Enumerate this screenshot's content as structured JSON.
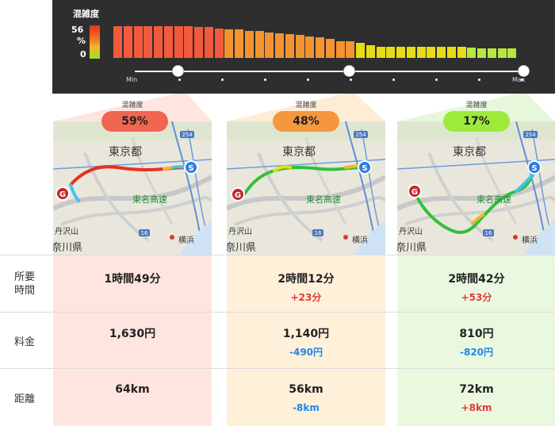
{
  "congestion_header": {
    "title": "混雑度",
    "max_label": "56",
    "unit_label": "%",
    "min_label": "0",
    "slider_min": "Min",
    "slider_max": "Max",
    "bar_levels": [
      56,
      56,
      56,
      56,
      56,
      56,
      56,
      56,
      54,
      54,
      52,
      50,
      50,
      48,
      47,
      45,
      44,
      42,
      40,
      38,
      36,
      34,
      30,
      29,
      26,
      22,
      20,
      20,
      20,
      20,
      20,
      20,
      20,
      20,
      20,
      18,
      17,
      17,
      17,
      17
    ],
    "slider_positions": [
      0.11,
      0.55,
      1.0
    ],
    "colors": {
      "red": "#f25a3e",
      "orange": "#f39431",
      "yellow": "#e8dc19",
      "green": "#b5e840"
    }
  },
  "routes": [
    {
      "label": "混雑度",
      "congestion": "59%",
      "pill_color": "#f06650",
      "time": "1時間49分",
      "time_diff": "",
      "fee": "1,630円",
      "fee_diff": "",
      "distance": "64km",
      "distance_diff": ""
    },
    {
      "label": "混雑度",
      "congestion": "48%",
      "pill_color": "#f5973e",
      "time": "2時間12分",
      "time_diff": "+23分",
      "fee": "1,140円",
      "fee_diff": "-490円",
      "distance": "56km",
      "distance_diff": "-8km"
    },
    {
      "label": "混雑度",
      "congestion": "17%",
      "pill_color": "#9eea3a",
      "time": "2時間42分",
      "time_diff": "+53分",
      "fee": "810円",
      "fee_diff": "-820円",
      "distance": "72km",
      "distance_diff": "+8km"
    }
  ],
  "map_labels": {
    "tokyo": "東京都",
    "tomei": "東名高速",
    "tanzawa": "丹沢山",
    "kanagawa": "奈川県",
    "yokohama": "横浜",
    "route_16": "16",
    "route_254": "254",
    "start_marker": "S",
    "goal_marker": "G"
  },
  "row_labels": {
    "time": "所要\n時間",
    "fee": "料金",
    "distance": "距離"
  }
}
